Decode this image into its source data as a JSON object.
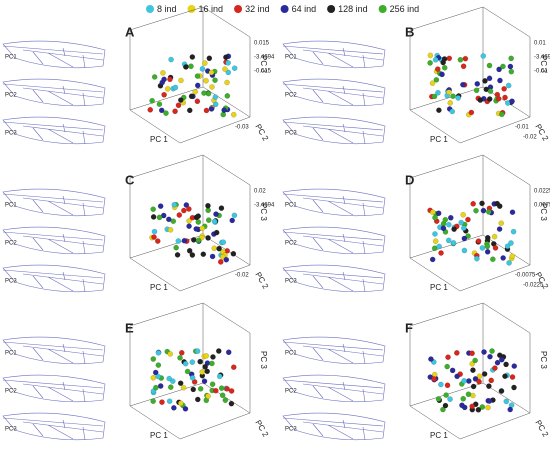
{
  "legend": [
    {
      "label": "8 ind",
      "color": "#3ec6e0"
    },
    {
      "label": "16 ind",
      "color": "#e8d21a"
    },
    {
      "label": "32 ind",
      "color": "#d8261c"
    },
    {
      "label": "64 ind",
      "color": "#2a2a9e"
    },
    {
      "label": "128 ind",
      "color": "#222222"
    },
    {
      "label": "256 ind",
      "color": "#3cae2a"
    }
  ],
  "panels": [
    {
      "letter": "A",
      "wings": [
        "PC1",
        "PC2",
        "PC3"
      ],
      "axes": [
        "PC 1",
        "PC 2",
        "PC 3"
      ],
      "pc3_ticks": [
        "0.015",
        "-3.4694",
        "-0.015"
      ],
      "pc2_ticks": [
        "-0.03"
      ]
    },
    {
      "letter": "B",
      "wings": [
        "PC1",
        "PC2",
        "PC3"
      ],
      "axes": [
        "PC 1",
        "PC 2",
        "PC 3"
      ],
      "pc3_ticks": [
        "0.01",
        "-3.4694",
        "-0.01"
      ],
      "pc2_ticks": [
        "-0.01",
        "-0.02"
      ]
    },
    {
      "letter": "C",
      "wings": [
        "PC1",
        "PC2",
        "PC3"
      ],
      "axes": [
        "PC 1",
        "PC 2",
        "PC 3"
      ],
      "pc3_ticks": [
        "0.02",
        "-3.4694"
      ],
      "pc2_ticks": [
        "-0.02"
      ]
    },
    {
      "letter": "D",
      "wings": [
        "PC1",
        "PC2",
        "PC3"
      ],
      "axes": [
        "PC 1",
        "PC 2",
        "PC 3"
      ],
      "pc3_ticks": [
        "0.0225",
        "0.0075"
      ],
      "pc2_ticks": [
        "-0.0075",
        "-0.0225"
      ]
    },
    {
      "letter": "E",
      "wings": [
        "PC1",
        "PC2",
        "PC3"
      ],
      "axes": [
        "PC 1",
        "PC 2",
        "PC 3"
      ],
      "pc3_ticks": [],
      "pc2_ticks": []
    },
    {
      "letter": "F",
      "wings": [
        "PC1",
        "PC2",
        "PC3"
      ],
      "axes": [
        "PC 1",
        "PC 2",
        "PC 3"
      ],
      "pc3_ticks": [],
      "pc2_ticks": []
    }
  ]
}
